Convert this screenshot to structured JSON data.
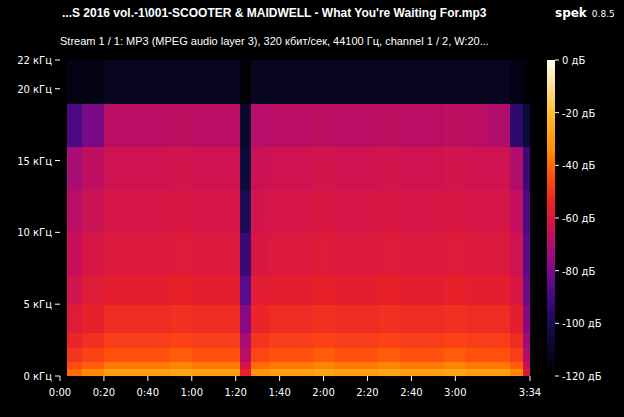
{
  "chart_data": {
    "type": "heatmap",
    "title": "...S 2016 vol.-1\\001-SCOOTER & MAIDWELL - What You're Waiting For.mp3",
    "subtitle": "Stream 1 / 1: MP3 (MPEG audio layer 3), 320 кбит/сек, 44100 Гц, channel 1 / 2, W:20...",
    "annotations": [
      "spek",
      "0.8.5"
    ],
    "xlim": [
      0,
      214
    ],
    "ylim": [
      0,
      22
    ],
    "xticks": [
      {
        "value": 0,
        "label": "0:00"
      },
      {
        "value": 20,
        "label": "0:20"
      },
      {
        "value": 40,
        "label": "0:40"
      },
      {
        "value": 60,
        "label": "1:00"
      },
      {
        "value": 80,
        "label": "1:20"
      },
      {
        "value": 100,
        "label": "1:40"
      },
      {
        "value": 120,
        "label": "2:00"
      },
      {
        "value": 140,
        "label": "2:20"
      },
      {
        "value": 160,
        "label": "2:40"
      },
      {
        "value": 180,
        "label": "3:00"
      },
      {
        "value": 214,
        "label": "3:34"
      }
    ],
    "yticks": [
      {
        "value": 0,
        "label": "0 кГц"
      },
      {
        "value": 5,
        "label": "5 кГц"
      },
      {
        "value": 10,
        "label": "10 кГц"
      },
      {
        "value": 15,
        "label": "15 кГц"
      },
      {
        "value": 20,
        "label": "20 кГц"
      },
      {
        "value": 22,
        "label": "22 кГц"
      }
    ],
    "x_edges": [
      0,
      3,
      10,
      20,
      30,
      40,
      50,
      60,
      70,
      82,
      87,
      95,
      105,
      115,
      125,
      135,
      145,
      155,
      165,
      175,
      185,
      195,
      205,
      211,
      214
    ],
    "y_edges": [
      0,
      0.5,
      1,
      2,
      3,
      5,
      7,
      10,
      13,
      16,
      19,
      22
    ],
    "values": [
      [
        -120,
        -40,
        -35,
        -30,
        -30,
        -30,
        -28,
        -30,
        -30,
        -55,
        -32,
        -30,
        -30,
        -28,
        -30,
        -30,
        -28,
        -30,
        -30,
        -28,
        -30,
        -30,
        -35,
        -60
      ],
      [
        -120,
        -45,
        -42,
        -38,
        -38,
        -38,
        -36,
        -38,
        -38,
        -62,
        -40,
        -38,
        -38,
        -36,
        -38,
        -38,
        -36,
        -38,
        -38,
        -36,
        -38,
        -38,
        -42,
        -65
      ],
      [
        -120,
        -50,
        -47,
        -44,
        -44,
        -44,
        -42,
        -44,
        -44,
        -68,
        -46,
        -44,
        -44,
        -42,
        -44,
        -44,
        -42,
        -44,
        -44,
        -42,
        -44,
        -44,
        -48,
        -70
      ],
      [
        -120,
        -54,
        -51,
        -48,
        -48,
        -48,
        -47,
        -48,
        -48,
        -72,
        -50,
        -48,
        -48,
        -47,
        -48,
        -48,
        -47,
        -48,
        -48,
        -47,
        -48,
        -48,
        -52,
        -74
      ],
      [
        -120,
        -58,
        -55,
        -52,
        -52,
        -52,
        -51,
        -52,
        -52,
        -78,
        -54,
        -52,
        -52,
        -51,
        -52,
        -52,
        -51,
        -52,
        -52,
        -51,
        -52,
        -52,
        -56,
        -78
      ],
      [
        -120,
        -62,
        -58,
        -56,
        -56,
        -56,
        -55,
        -56,
        -56,
        -85,
        -57,
        -56,
        -56,
        -55,
        -56,
        -56,
        -55,
        -56,
        -56,
        -55,
        -56,
        -56,
        -60,
        -82
      ],
      [
        -120,
        -65,
        -61,
        -59,
        -59,
        -59,
        -58,
        -59,
        -59,
        -92,
        -60,
        -59,
        -59,
        -58,
        -59,
        -59,
        -58,
        -59,
        -59,
        -58,
        -59,
        -59,
        -63,
        -85
      ],
      [
        -120,
        -68,
        -64,
        -61,
        -61,
        -61,
        -60,
        -61,
        -61,
        -100,
        -62,
        -61,
        -61,
        -60,
        -61,
        -61,
        -60,
        -61,
        -61,
        -60,
        -61,
        -61,
        -66,
        -88
      ],
      [
        -120,
        -72,
        -67,
        -63,
        -63,
        -63,
        -62,
        -63,
        -63,
        -105,
        -64,
        -63,
        -63,
        -62,
        -63,
        -63,
        -62,
        -63,
        -63,
        -62,
        -63,
        -63,
        -70,
        -92
      ],
      [
        -120,
        -88,
        -80,
        -68,
        -68,
        -68,
        -67,
        -68,
        -68,
        -108,
        -69,
        -68,
        -68,
        -67,
        -68,
        -68,
        -67,
        -68,
        -68,
        -67,
        -68,
        -70,
        -95,
        -105
      ],
      [
        -120,
        -115,
        -115,
        -112,
        -112,
        -112,
        -112,
        -112,
        -112,
        -118,
        -112,
        -112,
        -112,
        -112,
        -112,
        -112,
        -112,
        -112,
        -112,
        -112,
        -112,
        -112,
        -115,
        -118
      ]
    ],
    "color_range": [
      -120,
      0
    ],
    "color_ticks": [
      {
        "value": 0,
        "label": "0 дБ"
      },
      {
        "value": -20,
        "label": "-20 дБ"
      },
      {
        "value": -40,
        "label": "-40 дБ"
      },
      {
        "value": -60,
        "label": "-60 дБ"
      },
      {
        "value": -80,
        "label": "-80 дБ"
      },
      {
        "value": -100,
        "label": "-100 дБ"
      },
      {
        "value": -120,
        "label": "-120 дБ"
      }
    ]
  }
}
